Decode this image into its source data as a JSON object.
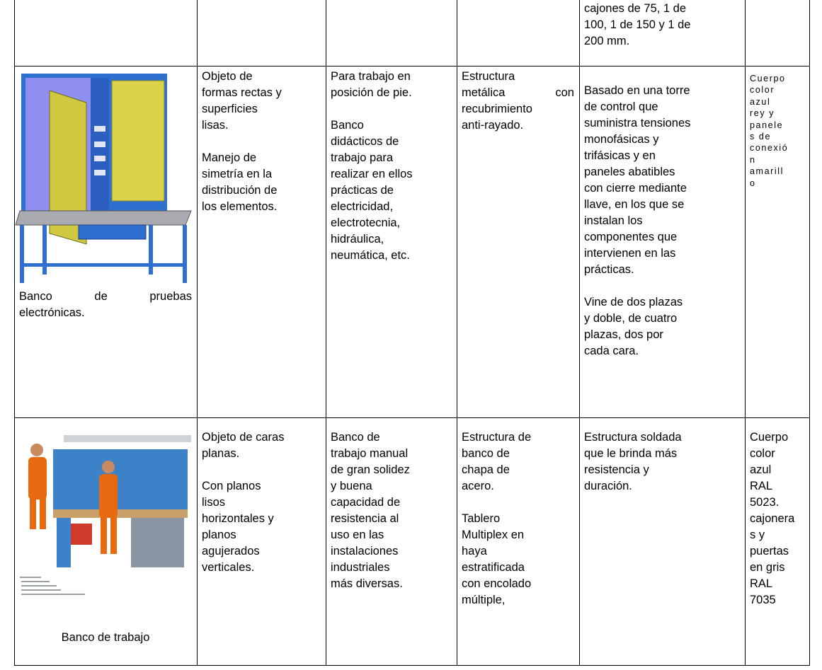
{
  "table": {
    "rows": [
      {
        "cells": [
          {
            "paragraphs": []
          },
          {
            "paragraphs": []
          },
          {
            "paragraphs": []
          },
          {
            "paragraphs": []
          },
          {
            "paragraphs": [
              [
                "cajones de 75, 1 de",
                "100, 1 de 150 y 1 de",
                "200 mm."
              ]
            ]
          },
          {
            "paragraphs": []
          }
        ]
      },
      {
        "cells": [
          {
            "paragraphs": [
              [
                "Banco de pruebas",
                "electrónicas."
              ]
            ]
          },
          {
            "paragraphs": [
              [
                "Objeto de",
                "formas rectas y",
                "superficies",
                "lisas."
              ],
              [
                "Manejo de",
                "simetría en la",
                "distribución de",
                "los elementos."
              ]
            ]
          },
          {
            "paragraphs": [
              [
                "Para trabajo en",
                "posición de pie."
              ],
              [
                "Banco",
                "didácticos de",
                "trabajo para",
                "realizar en ellos",
                "prácticas de",
                "electricidad,",
                "electrotecnia,",
                "hidráulica,",
                "neumática, etc."
              ]
            ]
          },
          {
            "paragraphs": [
              [
                "Estructura",
                "metálica con",
                "recubrimiento",
                "anti-rayado."
              ]
            ]
          },
          {
            "paragraphs": [
              [
                "Basado en una torre",
                "de control que",
                "suministra tensiones",
                "monofásicas y",
                "trifásicas y en",
                "paneles abatibles",
                "con cierre mediante",
                "llave, en los que se",
                "instalan los",
                "componentes que",
                "intervienen en las",
                "prácticas."
              ],
              [
                "Vine de dos plazas",
                "y doble, de cuatro",
                "plazas, dos por",
                "cada cara."
              ]
            ]
          },
          {
            "paragraphs": [
              [
                "Cuerpo",
                "color",
                "azul",
                "rey y",
                "panele",
                "s de",
                "conexió",
                "n",
                "amarill",
                "o"
              ]
            ]
          }
        ]
      },
      {
        "cells": [
          {
            "paragraphs": [
              [
                "Banco de trabajo"
              ]
            ]
          },
          {
            "paragraphs": [
              [
                "Objeto de caras",
                "planas."
              ],
              [
                "Con planos",
                "lisos",
                "horizontales y",
                "planos",
                "agujerados",
                "verticales."
              ]
            ]
          },
          {
            "paragraphs": [
              [
                "Banco de",
                "trabajo manual",
                "de gran solidez",
                "y buena",
                "capacidad de",
                "resistencia al",
                "uso en las",
                "instalaciones",
                "industriales",
                "más diversas."
              ]
            ]
          },
          {
            "paragraphs": [
              [
                "Estructura de",
                "banco de",
                "chapa de",
                "acero."
              ],
              [
                "Tablero",
                "Multiplex en",
                "haya",
                "estratificada",
                "con encolado",
                "múltiple,"
              ]
            ]
          },
          {
            "paragraphs": [
              [
                "Estructura soldada",
                "que le brinda más",
                "resistencia y",
                "duración."
              ]
            ]
          },
          {
            "paragraphs": [
              [
                "Cuerpo",
                "color",
                "azul",
                "RAL",
                "5023.",
                "cajonera",
                "s y",
                "puertas",
                "en gris",
                "RAL",
                "7035"
              ]
            ]
          }
        ]
      }
    ]
  }
}
